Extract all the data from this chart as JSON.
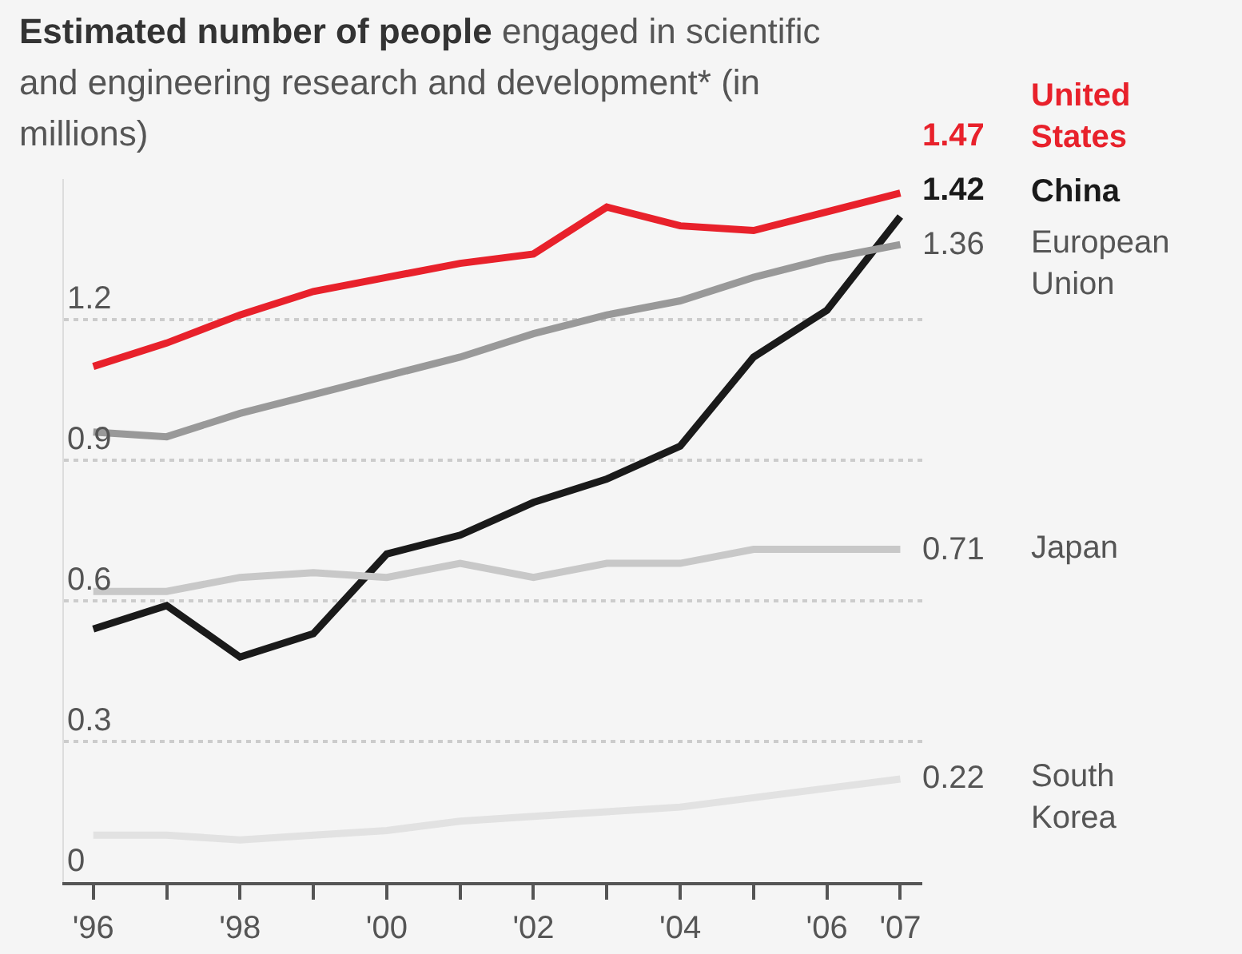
{
  "chart_data": {
    "type": "line",
    "title": "Estimated number of people",
    "subtitle": "engaged in scientific and engineering research and development* (in millions)",
    "x": [
      1996,
      1997,
      1998,
      1999,
      2000,
      2001,
      2002,
      2003,
      2004,
      2005,
      2006,
      2007
    ],
    "xlim": [
      1995.6,
      2007.3
    ],
    "xticks": [
      {
        "value": 1996,
        "label": "'96"
      },
      {
        "value": 1997,
        "label": null
      },
      {
        "value": 1998,
        "label": "'98"
      },
      {
        "value": 1999,
        "label": null
      },
      {
        "value": 2000,
        "label": "'00"
      },
      {
        "value": 2001,
        "label": null
      },
      {
        "value": 2002,
        "label": "'02"
      },
      {
        "value": 2003,
        "label": null
      },
      {
        "value": 2004,
        "label": "'04"
      },
      {
        "value": 2005,
        "label": null
      },
      {
        "value": 2006,
        "label": "'06"
      },
      {
        "value": 2007,
        "label": "'07"
      }
    ],
    "ylim": [
      0,
      1.5
    ],
    "yticks": [
      0,
      0.3,
      0.6,
      0.9,
      1.2
    ],
    "grid": "y",
    "legend": false,
    "series": [
      {
        "name": "United States",
        "color": "#e8212b",
        "values": [
          1.1,
          1.15,
          1.21,
          1.26,
          1.29,
          1.32,
          1.34,
          1.44,
          1.4,
          1.39,
          1.43,
          1.47
        ],
        "value_labels": [
          null,
          null,
          null,
          null,
          null,
          null,
          null,
          null,
          null,
          null,
          null,
          "1.47"
        ]
      },
      {
        "name": "China",
        "color": "#1a1a1a",
        "values": [
          0.54,
          0.59,
          0.48,
          0.53,
          0.7,
          0.74,
          0.81,
          0.86,
          0.93,
          1.12,
          1.22,
          1.42
        ],
        "value_labels": [
          null,
          null,
          null,
          null,
          null,
          null,
          null,
          null,
          null,
          null,
          null,
          "1.42"
        ]
      },
      {
        "name": "European Union",
        "color": "#999999",
        "values": [
          0.96,
          0.95,
          1.0,
          1.04,
          1.08,
          1.12,
          1.17,
          1.21,
          1.24,
          1.29,
          1.33,
          1.36
        ],
        "value_labels": [
          null,
          null,
          null,
          null,
          null,
          null,
          null,
          null,
          null,
          null,
          null,
          "1.36"
        ]
      },
      {
        "name": "Japan",
        "color": "#c8c8c8",
        "values": [
          0.62,
          0.62,
          0.65,
          0.66,
          0.65,
          0.68,
          0.65,
          0.68,
          0.68,
          0.71,
          0.71,
          0.71
        ],
        "value_labels": [
          null,
          null,
          null,
          null,
          null,
          null,
          null,
          null,
          null,
          null,
          null,
          "0.71"
        ]
      },
      {
        "name": "South Korea",
        "color": "#e2e2e2",
        "values": [
          0.1,
          0.1,
          0.09,
          0.1,
          0.11,
          0.13,
          0.14,
          0.15,
          0.16,
          0.18,
          0.2,
          0.22
        ],
        "value_labels": [
          null,
          null,
          null,
          null,
          null,
          null,
          null,
          null,
          null,
          null,
          null,
          "0.22"
        ]
      }
    ]
  }
}
